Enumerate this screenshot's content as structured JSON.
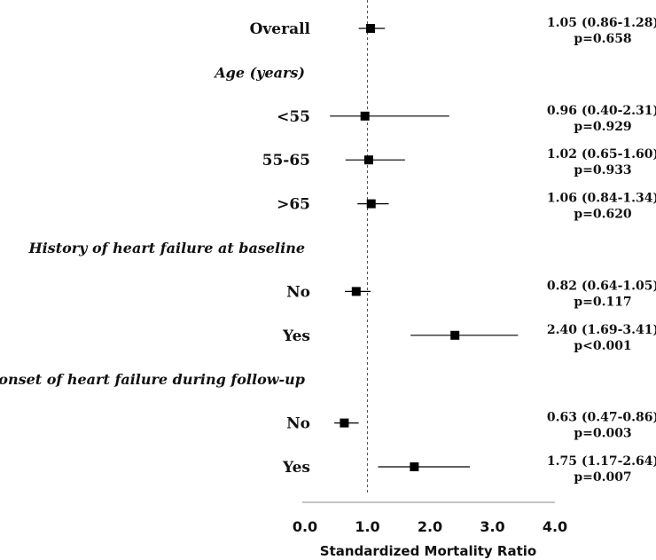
{
  "chart_data": {
    "type": "forest",
    "xlabel": "Standardized Mortality Ratio",
    "xlim": [
      0.0,
      4.0
    ],
    "xticks": [
      "0.0",
      "1.0",
      "2.0",
      "3.0",
      "4.0"
    ],
    "reference_line": 1.0,
    "rows": [
      {
        "kind": "item",
        "label": "Overall",
        "estimate": 1.05,
        "lower": 0.86,
        "upper": 1.28,
        "ci_text": "1.05 (0.86-1.28)",
        "p_text": "p=0.658"
      },
      {
        "kind": "group",
        "label": "Age (years)"
      },
      {
        "kind": "item",
        "label": "<55",
        "estimate": 0.96,
        "lower": 0.4,
        "upper": 2.31,
        "ci_text": "0.96 (0.40-2.31)",
        "p_text": "p=0.929"
      },
      {
        "kind": "item",
        "label": "55-65",
        "estimate": 1.02,
        "lower": 0.65,
        "upper": 1.6,
        "ci_text": "1.02 (0.65-1.60)",
        "p_text": "p=0.933"
      },
      {
        "kind": "item",
        "label": ">65",
        "estimate": 1.06,
        "lower": 0.84,
        "upper": 1.34,
        "ci_text": "1.06 (0.84-1.34)",
        "p_text": "p=0.620"
      },
      {
        "kind": "group",
        "label": "History of heart failure at baseline"
      },
      {
        "kind": "item",
        "label": "No",
        "estimate": 0.82,
        "lower": 0.64,
        "upper": 1.05,
        "ci_text": "0.82 (0.64-1.05)",
        "p_text": "p=0.117"
      },
      {
        "kind": "item",
        "label": "Yes",
        "estimate": 2.4,
        "lower": 1.69,
        "upper": 3.41,
        "ci_text": "2.40 (1.69-3.41)",
        "p_text": "p<0.001"
      },
      {
        "kind": "group",
        "label": "New onset of heart failure during follow-up"
      },
      {
        "kind": "item",
        "label": "No",
        "estimate": 0.63,
        "lower": 0.47,
        "upper": 0.86,
        "ci_text": "0.63 (0.47-0.86)",
        "p_text": "p=0.003"
      },
      {
        "kind": "item",
        "label": "Yes",
        "estimate": 1.75,
        "lower": 1.17,
        "upper": 2.64,
        "ci_text": "1.75 (1.17-2.64)",
        "p_text": "p=0.007"
      }
    ]
  }
}
